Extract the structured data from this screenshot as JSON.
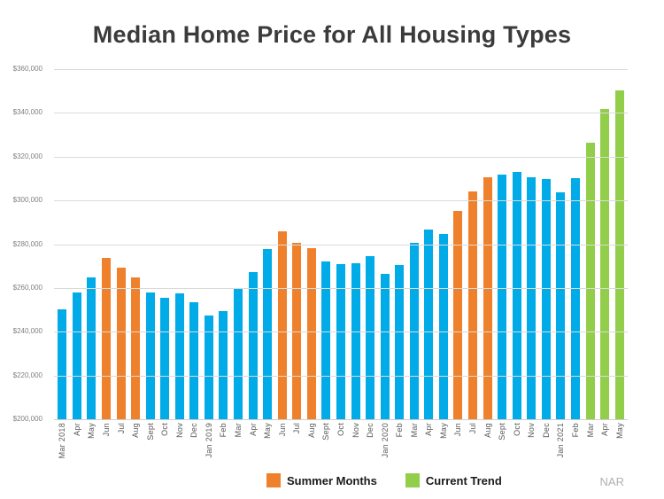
{
  "title": "Median Home Price for All Housing Types",
  "source_label": "NAR",
  "legend": {
    "items": [
      {
        "label": "Summer Months",
        "color": "#F0812C"
      },
      {
        "label": "Current Trend",
        "color": "#92CE49"
      }
    ]
  },
  "chart_data": {
    "type": "bar",
    "title": "Median Home Price for All Housing Types",
    "xlabel": "",
    "ylabel": "",
    "ylim": [
      200000,
      360000
    ],
    "ytick_step": 20000,
    "ytick_labels": [
      "$360,000",
      "$340,000",
      "$320,000",
      "$300,000",
      "$280,000",
      "$260,000",
      "$240,000",
      "$220,000",
      "$200,000"
    ],
    "grid": true,
    "legend_position": "bottom-center",
    "bar_colors": {
      "regular": "#00ABE8",
      "summer": "#F0812C",
      "trend": "#92CE49"
    },
    "categories": [
      "Mar 2018",
      "Apr",
      "May",
      "Jun",
      "Jul",
      "Aug",
      "Sept",
      "Oct",
      "Nov",
      "Dec",
      "Jan 2019",
      "Feb",
      "Mar",
      "Apr",
      "May",
      "Jun",
      "Jul",
      "Aug",
      "Sept",
      "Oct",
      "Nov",
      "Dec",
      "Jan 2020",
      "Feb",
      "Mar",
      "Apr",
      "May",
      "Jun",
      "Jul",
      "Aug",
      "Sept",
      "Oct",
      "Nov",
      "Dec",
      "Jan 2021",
      "Feb",
      "Mar",
      "Apr",
      "May"
    ],
    "values": [
      250400,
      257900,
      264800,
      273800,
      269300,
      264800,
      258100,
      255400,
      257700,
      253600,
      247500,
      249500,
      259400,
      267300,
      277700,
      285700,
      280800,
      278200,
      272100,
      270900,
      271300,
      274500,
      266300,
      270400,
      280600,
      286800,
      284600,
      295300,
      304100,
      310600,
      311800,
      313000,
      310800,
      309800,
      303900,
      310200,
      326300,
      341600,
      350300
    ],
    "groups": [
      "regular",
      "regular",
      "regular",
      "summer",
      "summer",
      "summer",
      "regular",
      "regular",
      "regular",
      "regular",
      "regular",
      "regular",
      "regular",
      "regular",
      "regular",
      "summer",
      "summer",
      "summer",
      "regular",
      "regular",
      "regular",
      "regular",
      "regular",
      "regular",
      "regular",
      "regular",
      "regular",
      "summer",
      "summer",
      "summer",
      "regular",
      "regular",
      "regular",
      "regular",
      "regular",
      "regular",
      "trend",
      "trend",
      "trend"
    ]
  }
}
